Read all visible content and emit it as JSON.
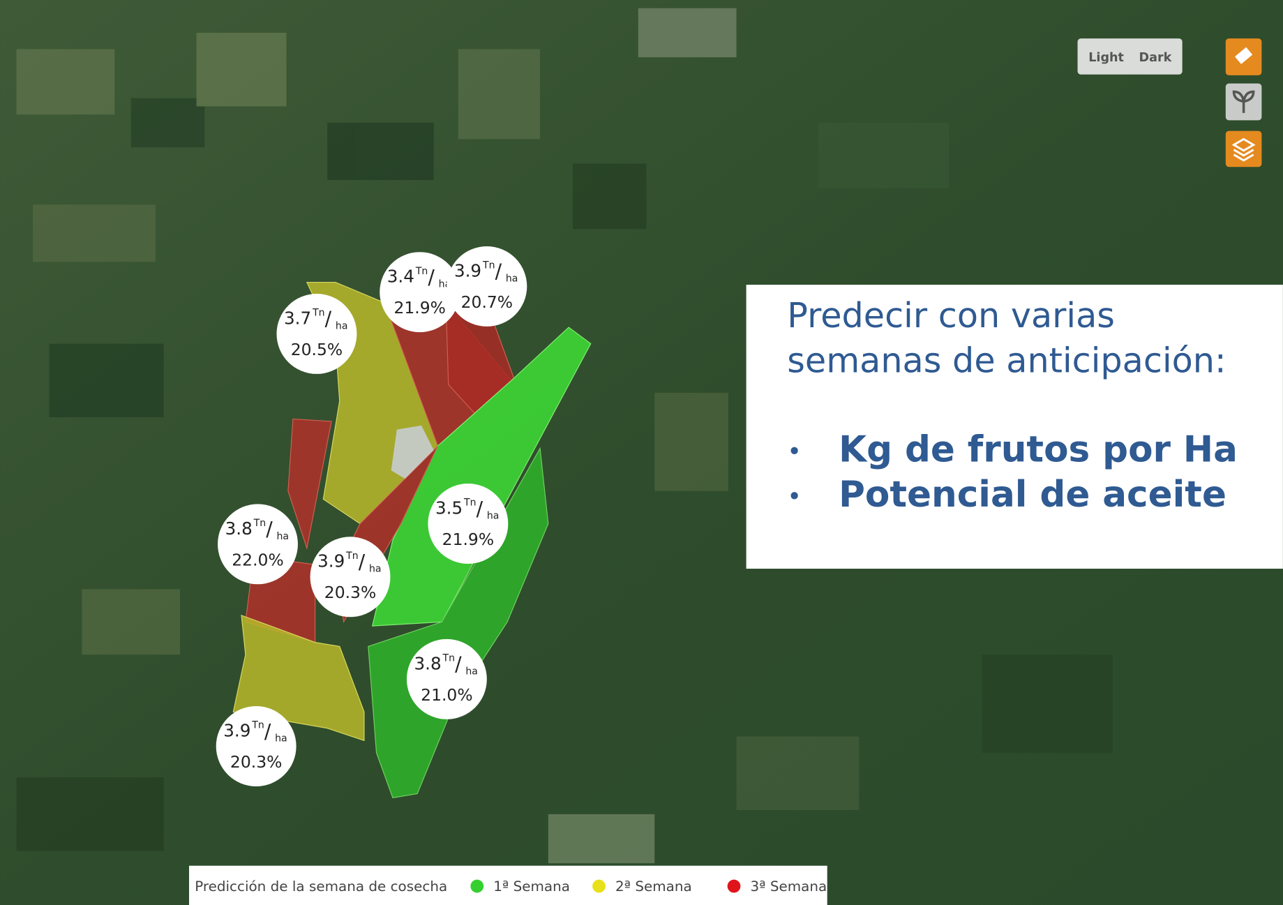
{
  "map_controls": {
    "theme_toggle": [
      "Light",
      "Dark"
    ]
  },
  "callout": {
    "title_lines": [
      "Predecir con varias",
      "semanas de anticipación:"
    ],
    "bullets": [
      "Kg de frutos por Ha",
      "Potencial de aceite"
    ]
  },
  "fields": [
    {
      "yield": "3.4",
      "unit": "Tn",
      "per": "ha",
      "oil": "21.9%"
    },
    {
      "yield": "3.9",
      "unit": "Tn",
      "per": "ha",
      "oil": "20.7%"
    },
    {
      "yield": "3.7",
      "unit": "Tn",
      "per": "ha",
      "oil": "20.5%"
    },
    {
      "yield": "3.5",
      "unit": "Tn",
      "per": "ha",
      "oil": "21.9%"
    },
    {
      "yield": "3.8",
      "unit": "Tn",
      "per": "ha",
      "oil": "22.0%"
    },
    {
      "yield": "3.9",
      "unit": "Tn",
      "per": "ha",
      "oil": "20.3%"
    },
    {
      "yield": "3.8",
      "unit": "Tn",
      "per": "ha",
      "oil": "21.0%"
    },
    {
      "yield": "3.9",
      "unit": "Tn",
      "per": "ha",
      "oil": "20.3%"
    }
  ],
  "legend": {
    "title": "Predicción de la semana de cosecha",
    "items": [
      {
        "label": "1ª Semana",
        "color": "#35d02f"
      },
      {
        "label": "2ª Semana",
        "color": "#e8e01a"
      },
      {
        "label": "3ª Semana",
        "color": "#e0151b"
      }
    ]
  }
}
